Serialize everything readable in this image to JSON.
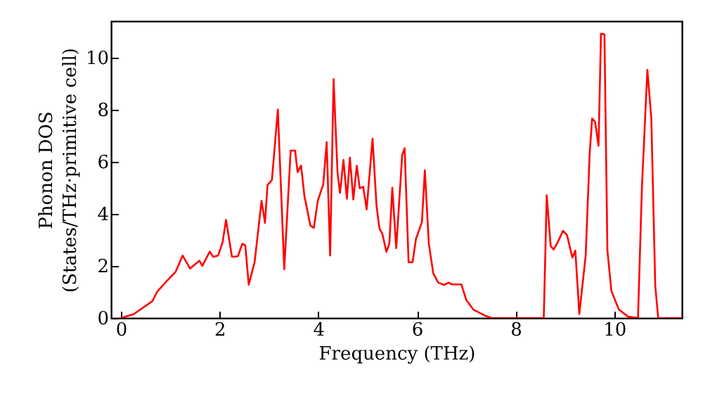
{
  "chart_data": {
    "type": "line",
    "xlabel": "Frequency (THz)",
    "ylabel": "Phonon DOS\n(States/THz·primitive cell)",
    "xlim": [
      -0.2,
      11.37
    ],
    "ylim": [
      0,
      11.4
    ],
    "xticks": [
      0,
      2,
      4,
      6,
      8,
      10
    ],
    "yticks": [
      0,
      2,
      4,
      6,
      8,
      10
    ],
    "grid": false,
    "marker": "none",
    "line_style": "solid",
    "series": [
      {
        "color": "#ff0000",
        "x": [
          0,
          0.26,
          0.64,
          0.73,
          0.92,
          1.11,
          1.25,
          1.4,
          1.59,
          1.65,
          1.8,
          1.87,
          1.97,
          2.06,
          2.13,
          2.25,
          2.37,
          2.46,
          2.52,
          2.59,
          2.71,
          2.85,
          2.92,
          2.97,
          3.06,
          3.18,
          3.31,
          3.44,
          3.53,
          3.58,
          3.65,
          3.72,
          3.84,
          3.91,
          3.99,
          4.1,
          4.17,
          4.24,
          4.31,
          4.39,
          4.44,
          4.51,
          4.58,
          4.64,
          4.71,
          4.78,
          4.84,
          4.91,
          4.98,
          5.1,
          5.18,
          5.24,
          5.3,
          5.38,
          5.44,
          5.5,
          5.58,
          5.7,
          5.75,
          5.83,
          5.91,
          5.98,
          6.1,
          6.16,
          6.24,
          6.33,
          6.43,
          6.55,
          6.64,
          6.71,
          6.9,
          7.0,
          7.14,
          7.38,
          7.52,
          8.57,
          8.63,
          8.71,
          8.77,
          8.85,
          8.96,
          9.04,
          9.15,
          9.21,
          9.29,
          9.42,
          9.5,
          9.55,
          9.61,
          9.68,
          9.73,
          9.8,
          9.86,
          9.94,
          10.09,
          10.28,
          10.48,
          10.56,
          10.67,
          10.75,
          10.83,
          10.89,
          11.37
        ],
        "values": [
          0,
          0.15,
          0.65,
          1.0,
          1.4,
          1.78,
          2.4,
          1.9,
          2.2,
          2.0,
          2.55,
          2.35,
          2.4,
          2.9,
          3.77,
          2.35,
          2.37,
          2.85,
          2.8,
          1.28,
          2.15,
          4.5,
          3.65,
          5.1,
          5.3,
          8.0,
          1.87,
          6.43,
          6.43,
          5.6,
          5.85,
          4.67,
          3.55,
          3.46,
          4.5,
          5.13,
          6.75,
          2.4,
          9.17,
          5.58,
          4.8,
          6.07,
          4.58,
          6.16,
          4.55,
          5.85,
          4.98,
          5.04,
          4.17,
          6.89,
          4.31,
          3.44,
          3.22,
          2.54,
          2.86,
          5.0,
          2.68,
          6.25,
          6.52,
          2.14,
          2.14,
          3.04,
          3.68,
          5.67,
          2.86,
          1.72,
          1.36,
          1.27,
          1.36,
          1.29,
          1.29,
          0.69,
          0.33,
          0.09,
          0,
          0,
          4.71,
          2.77,
          2.63,
          2.9,
          3.35,
          3.19,
          2.32,
          2.59,
          0.15,
          2.41,
          6.3,
          7.66,
          7.53,
          6.61,
          10.92,
          10.89,
          2.59,
          1.05,
          0.33,
          0.05,
          0,
          5.04,
          9.53,
          7.66,
          1.23,
          0,
          0
        ]
      }
    ]
  }
}
